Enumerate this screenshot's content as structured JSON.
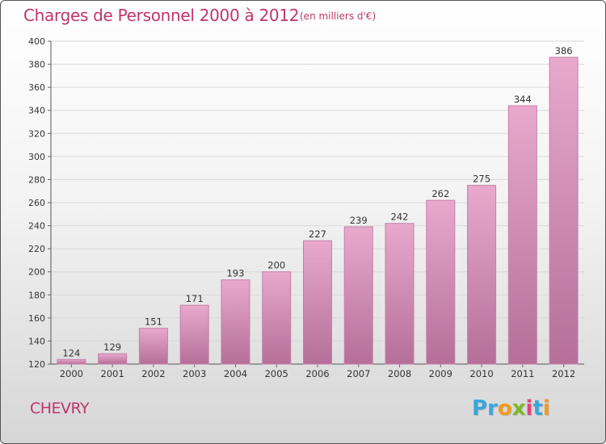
{
  "header": {
    "title": "Charges de Personnel 2000 à 2012",
    "subtitle": "(en milliers d'€)"
  },
  "footer": {
    "commune": "CHEVRY",
    "logo": [
      "P",
      "r",
      "o",
      "x",
      "i",
      "t",
      "i"
    ],
    "logo_colors": [
      "#3aa6dd",
      "#3aa6dd",
      "#f29a1d",
      "#7ab829",
      "#e2437e",
      "#3aa6dd",
      "#f29a1d"
    ]
  },
  "colors": {
    "bar_top": "#e8a9cd",
    "bar_bottom": "#b56f98",
    "bar_edge": "#c77fab",
    "accent": "#c0356a"
  },
  "chart_data": {
    "type": "bar",
    "title": "Charges de Personnel 2000 à 2012",
    "subtitle": "(en milliers d'€)",
    "xlabel": "",
    "ylabel": "",
    "categories": [
      "2000",
      "2001",
      "2002",
      "2003",
      "2004",
      "2005",
      "2006",
      "2007",
      "2008",
      "2009",
      "2010",
      "2011",
      "2012"
    ],
    "values": [
      124,
      129,
      151,
      171,
      193,
      200,
      227,
      239,
      242,
      262,
      275,
      344,
      386
    ],
    "ylim": [
      120,
      400
    ],
    "yticks": [
      120,
      140,
      160,
      180,
      200,
      220,
      240,
      260,
      280,
      300,
      320,
      340,
      360,
      380,
      400
    ],
    "grid": true
  }
}
